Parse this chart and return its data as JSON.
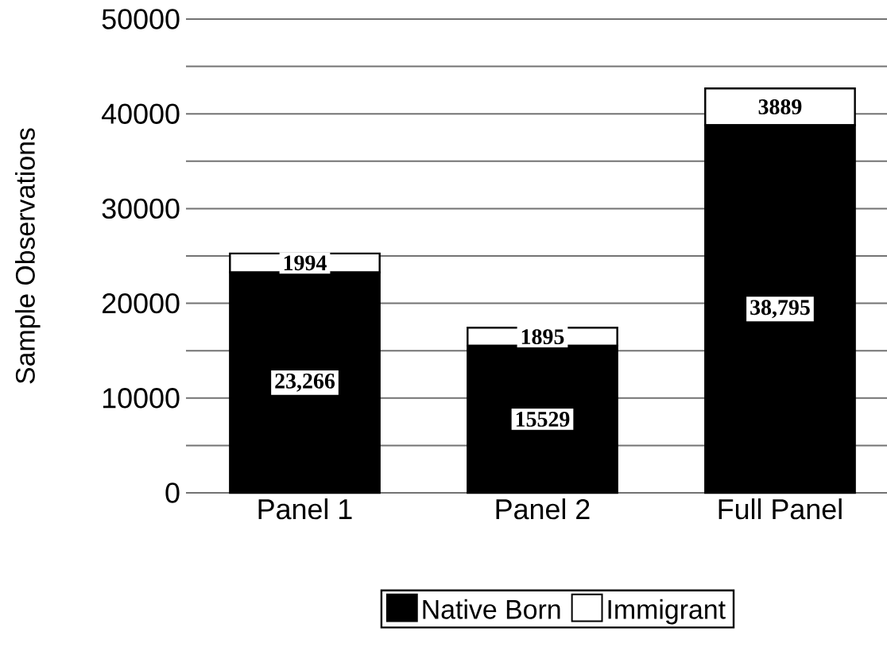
{
  "chart_data": {
    "type": "bar",
    "stacked": true,
    "ylabel": "Sample Observations",
    "categories": [
      "Panel 1",
      "Panel 2",
      "Full Panel"
    ],
    "series": [
      {
        "name": "Native Born",
        "color": "#000000",
        "values": [
          23266,
          15529,
          38795
        ],
        "value_labels": [
          "23,266",
          "15529",
          "38,795"
        ]
      },
      {
        "name": "Immigrant",
        "color": "#ffffff",
        "values": [
          1994,
          1895,
          3889
        ],
        "value_labels": [
          "1994",
          "1895",
          "3889"
        ]
      }
    ],
    "ylim": [
      0,
      50000
    ],
    "yticks": [
      0,
      {
        "value": 5000,
        "label": null
      },
      10000,
      {
        "value": 15000,
        "label": null
      },
      20000,
      {
        "value": 25000,
        "label": null
      },
      30000,
      {
        "value": 35000,
        "label": null
      },
      40000,
      {
        "value": 45000,
        "label": null
      },
      50000
    ],
    "grid": "y",
    "legend": "bottom"
  }
}
